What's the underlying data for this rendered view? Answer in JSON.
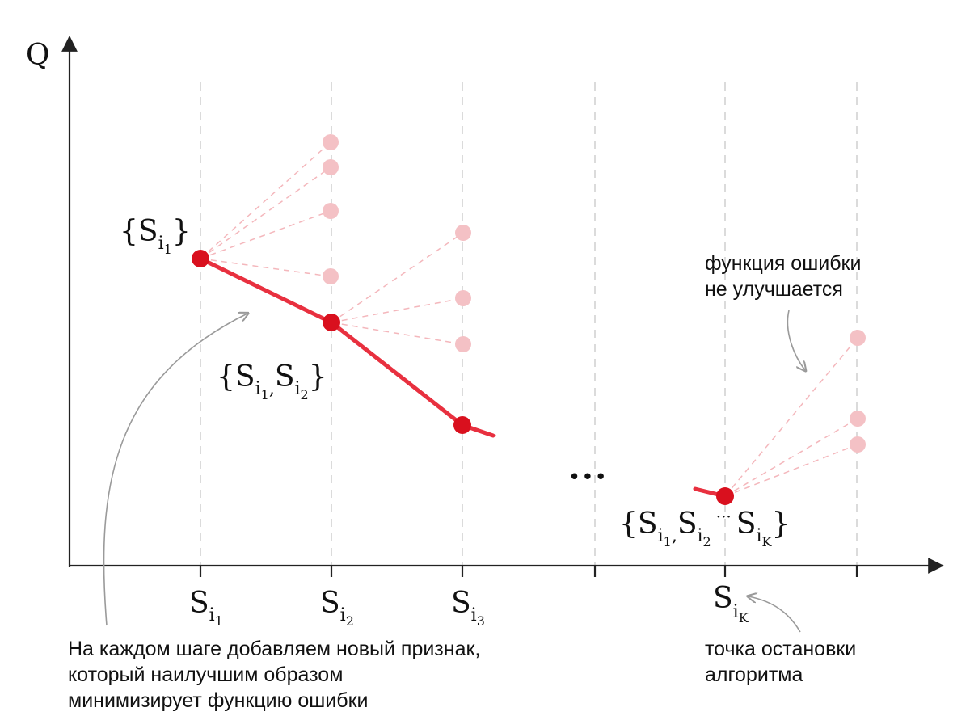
{
  "colors": {
    "axis": "#222222",
    "path": "#e8303f",
    "point": "#d9101e",
    "candidate": "#f4c1c5",
    "candidate_line": "#f4b7bc",
    "grid": "#cfcfcf",
    "annotation_arrow": "#9a9a9a"
  },
  "diagram": {
    "y_axis_label": "Q",
    "x_ticks": [
      {
        "base": "S",
        "sub": "i",
        "subsub": "1"
      },
      {
        "base": "S",
        "sub": "i",
        "subsub": "2"
      },
      {
        "base": "S",
        "sub": "i",
        "subsub": "3"
      },
      {
        "base": "",
        "sub": "",
        "subsub": ""
      },
      {
        "base": "S",
        "sub": "i",
        "subsub": "K"
      },
      {
        "base": "",
        "sub": "",
        "subsub": ""
      }
    ],
    "set_labels": {
      "set1": {
        "open": "{",
        "base": "S",
        "sub": "i",
        "subsub": "1",
        "close": "}"
      },
      "set2": {
        "open": "{",
        "base1": "S",
        "sub1": "i",
        "subsub1": "1",
        "comma": ",",
        "base2": "S",
        "sub2": "i",
        "subsub2": "2",
        "close": "}"
      },
      "setk": {
        "open": "{",
        "base1": "S",
        "sub1": "i",
        "subsub1": "1",
        "comma": ",",
        "base2": "S",
        "sub2": "i",
        "subsub2": "2",
        "dots": "···",
        "base3": "S",
        "sub3": "i",
        "subsub3": "K",
        "close": "}"
      }
    },
    "ellipsis": "• • •",
    "annotations": {
      "no_improve": [
        "функция ошибки",
        "не улучшается"
      ],
      "each_step": [
        "На каждом шаге добавляем новый признак,",
        "который наилучшим образом",
        "минимизирует функцию ошибки"
      ],
      "stop": [
        "точка остановки",
        "алгоритма"
      ]
    }
  }
}
